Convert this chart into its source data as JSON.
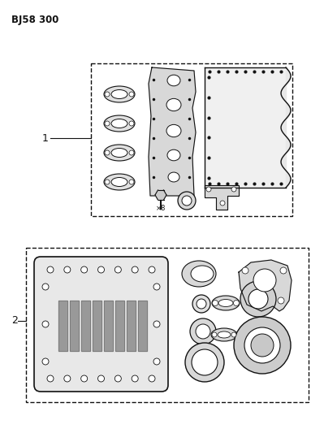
{
  "title": "BJ58 300",
  "bg_color": "#ffffff",
  "lc": "#111111",
  "fill_light": "#e8e8e8",
  "fill_mid": "#d0d0d0",
  "fill_dark": "#aaaaaa",
  "label1": "1",
  "label2": "2",
  "fig_width": 3.99,
  "fig_height": 5.33,
  "dpi": 100
}
